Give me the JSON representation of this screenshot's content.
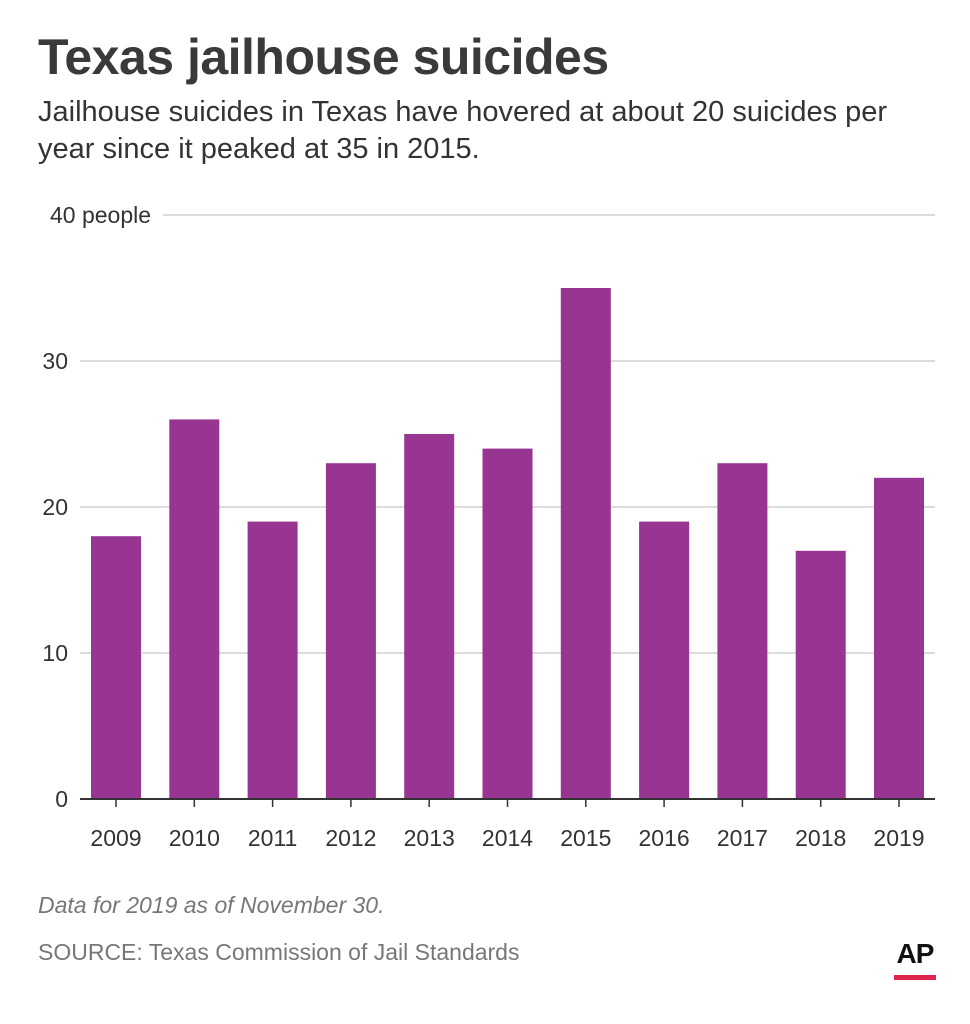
{
  "header": {
    "title": "Texas jailhouse suicides",
    "subtitle": "Jailhouse suicides in Texas have hovered at about 20 suicides per year since it peaked at 35 in 2015."
  },
  "footer": {
    "note": "Data for 2019 as of November 30.",
    "source": "SOURCE: Texas Commission of Jail Standards",
    "logo": "AP"
  },
  "colors": {
    "bar": "#983592",
    "grid": "#dcdcdc",
    "axis": "#333333",
    "logo_accent": "#e0244b"
  },
  "chart_data": {
    "type": "bar",
    "categories": [
      "2009",
      "2010",
      "2011",
      "2012",
      "2013",
      "2014",
      "2015",
      "2016",
      "2017",
      "2018",
      "2019"
    ],
    "values": [
      18,
      26,
      19,
      23,
      25,
      24,
      35,
      19,
      23,
      17,
      22
    ],
    "title": "Texas jailhouse suicides",
    "xlabel": "",
    "ylabel": "",
    "ylim": [
      0,
      40
    ],
    "yticks": [
      0,
      10,
      20,
      30,
      40
    ],
    "ytick_labels": [
      "0",
      "10",
      "20",
      "30",
      "40 people"
    ],
    "grid": true,
    "legend": "none"
  }
}
